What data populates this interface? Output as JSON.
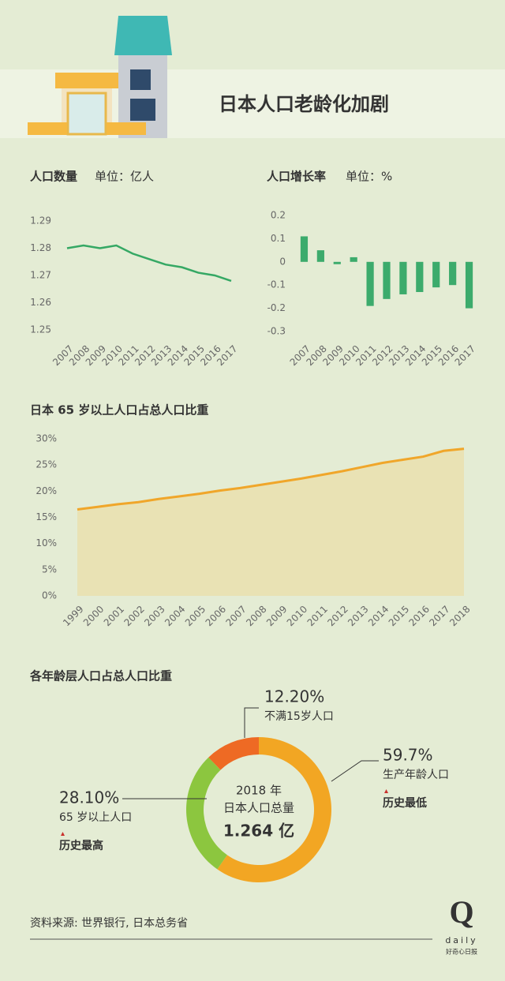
{
  "title": "日本人口老龄化加剧",
  "source": "资料来源: 世界银行, 日本总务省",
  "logo": {
    "mark": "Q",
    "name": "daily",
    "tagline": "好奇心日报"
  },
  "chart_data": [
    {
      "type": "line",
      "title": "人口数量",
      "subtitle": "单位：亿人",
      "categories": [
        "2007",
        "2008",
        "2009",
        "2010",
        "2011",
        "2012",
        "2013",
        "2014",
        "2015",
        "2016",
        "2017"
      ],
      "values": [
        1.28,
        1.281,
        1.28,
        1.281,
        1.278,
        1.276,
        1.274,
        1.273,
        1.271,
        1.27,
        1.268
      ],
      "color": "#35a864",
      "ylim": [
        1.25,
        1.29
      ],
      "yticks": [
        1.25,
        1.26,
        1.27,
        1.28,
        1.29
      ],
      "grid": false
    },
    {
      "type": "bar",
      "title": "人口增长率",
      "subtitle": "单位：%",
      "categories": [
        "2007",
        "2008",
        "2009",
        "2010",
        "2011",
        "2012",
        "2013",
        "2014",
        "2015",
        "2016",
        "2017"
      ],
      "values": [
        0.11,
        0.05,
        -0.01,
        0.02,
        -0.19,
        -0.16,
        -0.14,
        -0.13,
        -0.11,
        -0.1,
        -0.2
      ],
      "color": "#3cab6c",
      "ylim": [
        -0.3,
        0.2
      ],
      "yticks": [
        -0.3,
        -0.2,
        -0.1,
        0,
        0.1,
        0.2
      ],
      "grid": false
    },
    {
      "type": "area",
      "title": "日本 65 岁以上人口占总人口比重",
      "categories": [
        "1999",
        "2000",
        "2001",
        "2002",
        "2003",
        "2004",
        "2005",
        "2006",
        "2007",
        "2008",
        "2009",
        "2010",
        "2011",
        "2012",
        "2013",
        "2014",
        "2015",
        "2016",
        "2017",
        "2018"
      ],
      "values": [
        16.5,
        17.0,
        17.5,
        17.9,
        18.5,
        19.0,
        19.5,
        20.1,
        20.6,
        21.2,
        21.8,
        22.4,
        23.1,
        23.8,
        24.6,
        25.4,
        26.0,
        26.6,
        27.7,
        28.1
      ],
      "color": "#f0a62a",
      "fill": "#e9e2b4",
      "ylim": [
        0,
        30
      ],
      "yticks": [
        {
          "value": 0,
          "label": "0%"
        },
        {
          "value": 5,
          "label": "5%"
        },
        {
          "value": 10,
          "label": "10%"
        },
        {
          "value": 15,
          "label": "15%"
        },
        {
          "value": 20,
          "label": "20%"
        },
        {
          "value": 25,
          "label": "25%"
        },
        {
          "value": 30,
          "label": "30%"
        }
      ],
      "grid": false
    },
    {
      "type": "donut",
      "title": "各年龄层人口占总人口比重",
      "categories": [
        "不满15岁人口",
        "生产年龄人口",
        "65 岁以上人口"
      ],
      "values": [
        12.2,
        59.7,
        28.1
      ],
      "value_labels": [
        "12.20%",
        "59.7%",
        "28.10%"
      ],
      "colors": [
        "#ee6a24",
        "#f2a623",
        "#8cc63f"
      ],
      "center_lines": [
        "2018 年",
        "日本人口总量"
      ],
      "center_value": "1.264 亿",
      "annotations": [
        {
          "category": "生产年龄人口",
          "text": "历史最低"
        },
        {
          "category": "65 岁以上人口",
          "text": "历史最高"
        }
      ]
    }
  ]
}
